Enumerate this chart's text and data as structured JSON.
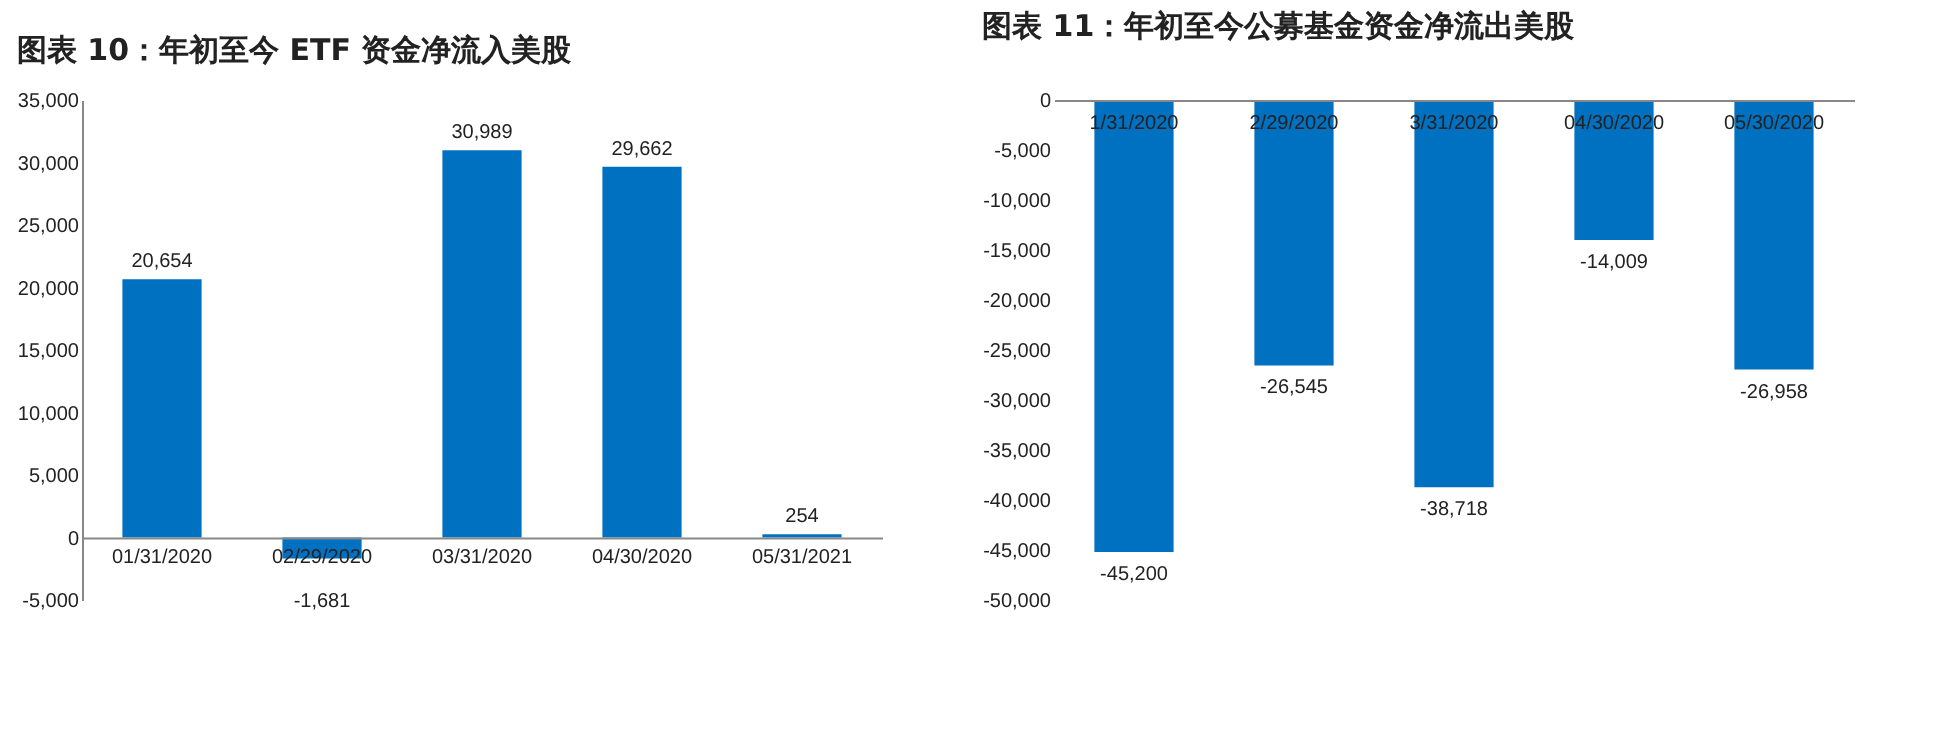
{
  "chart_data": [
    {
      "type": "bar",
      "title": "图表 10：年初至今 ETF 资金净流入美股",
      "categories": [
        "01/31/2020",
        "02/29/2020",
        "03/31/2020",
        "04/30/2020",
        "05/31/2021"
      ],
      "values": [
        20654,
        -1681,
        30989,
        29662,
        254
      ],
      "value_labels": [
        "20,654",
        "-1,681",
        "30,989",
        "29,662",
        "254"
      ],
      "color": "#0070c0",
      "ylim": [
        -5000,
        35000
      ],
      "yticks": [
        {
          "value": -5000,
          "label": "-5,000"
        },
        {
          "value": 0,
          "label": "0"
        },
        {
          "value": 5000,
          "label": "5,000"
        },
        {
          "value": 10000,
          "label": "10,000"
        },
        {
          "value": 15000,
          "label": "15,000"
        },
        {
          "value": 20000,
          "label": "20,000"
        },
        {
          "value": 25000,
          "label": "25,000"
        },
        {
          "value": 30000,
          "label": "30,000"
        },
        {
          "value": 35000,
          "label": "35,000"
        }
      ],
      "grid": false
    },
    {
      "type": "bar",
      "title": "图表 11：年初至今公募基金资金净流出美股",
      "categories": [
        "1/31/2020",
        "2/29/2020",
        "3/31/2020",
        "04/30/2020",
        "05/30/2020"
      ],
      "values": [
        -45200,
        -26545,
        -38718,
        -14009,
        -26958
      ],
      "value_labels": [
        "-45,200",
        "-26,545",
        "-38,718",
        "-14,009",
        "-26,958"
      ],
      "color": "#0070c0",
      "ylim": [
        -50000,
        0
      ],
      "yticks": [
        {
          "value": -50000,
          "label": "-50,000"
        },
        {
          "value": -45000,
          "label": "-45,000"
        },
        {
          "value": -40000,
          "label": "-40,000"
        },
        {
          "value": -35000,
          "label": "-35,000"
        },
        {
          "value": -30000,
          "label": "-30,000"
        },
        {
          "value": -25000,
          "label": "-25,000"
        },
        {
          "value": -20000,
          "label": "-20,000"
        },
        {
          "value": -15000,
          "label": "-15,000"
        },
        {
          "value": -10000,
          "label": "-10,000"
        },
        {
          "value": -5000,
          "label": "-5,000"
        },
        {
          "value": 0,
          "label": "0"
        }
      ],
      "grid": false
    }
  ]
}
